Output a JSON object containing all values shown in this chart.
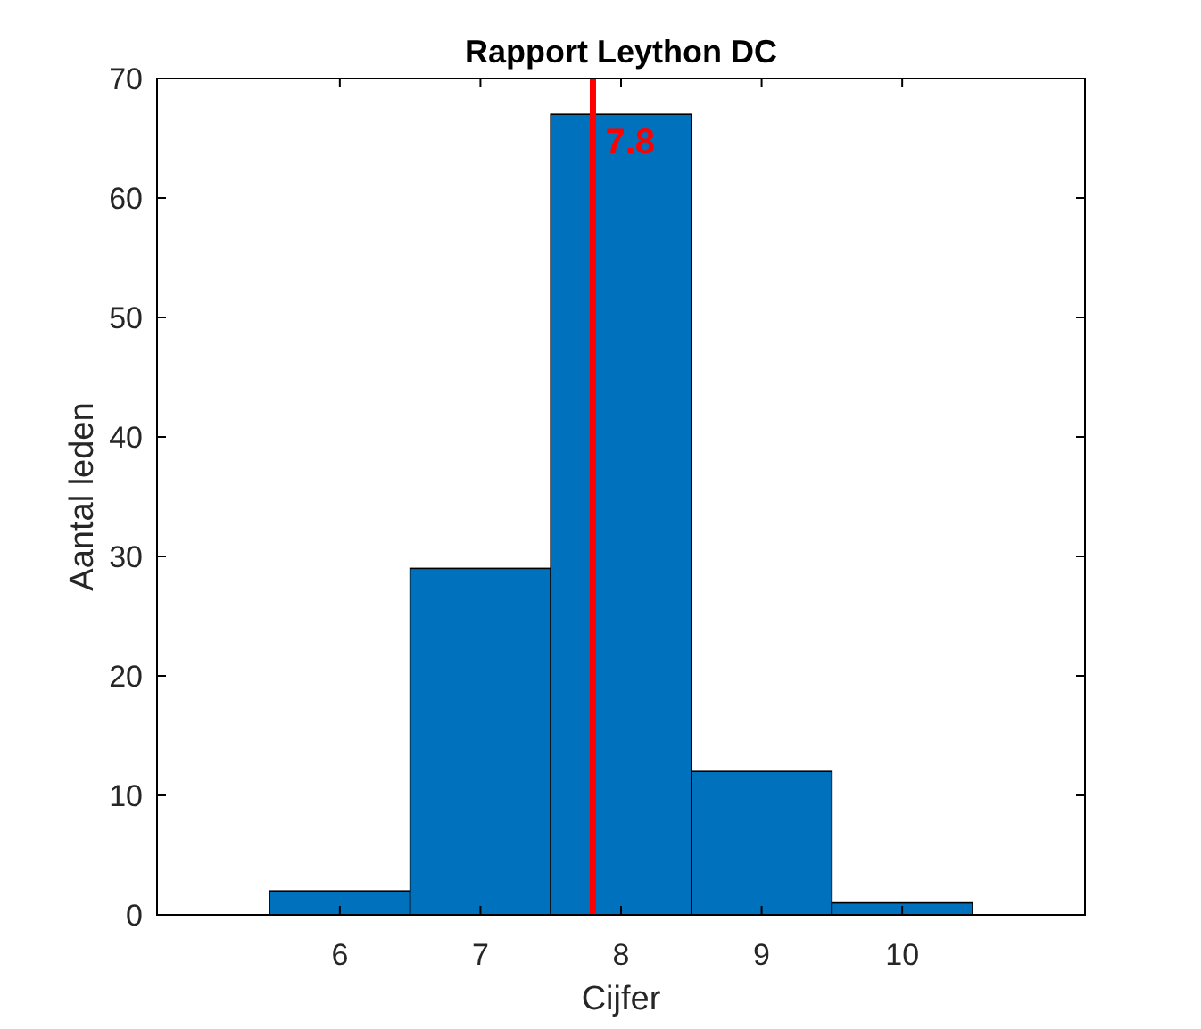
{
  "chart_data": {
    "type": "histogram",
    "title": "Rapport Leython DC",
    "xlabel": "Cijfer",
    "ylabel": "Aantal leden",
    "bins": [
      5.5,
      6.5,
      7.5,
      8.5,
      9.5,
      10.5
    ],
    "values": [
      2,
      29,
      67,
      12,
      1
    ],
    "color": "#0072bd",
    "xlim": [
      4.7,
      11.3
    ],
    "xticks": [
      6,
      7,
      8,
      9,
      10
    ],
    "ylim": [
      0,
      70
    ],
    "yticks": [
      0,
      10,
      20,
      30,
      40,
      50,
      60,
      70
    ],
    "grid": false,
    "ref_lines": [
      {
        "axis": "x",
        "value": 7.8,
        "label": "7.8",
        "color": "#ff0000"
      }
    ]
  }
}
